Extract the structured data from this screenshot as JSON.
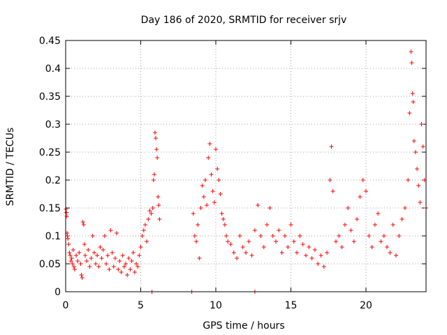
{
  "chart_data": {
    "type": "scatter",
    "title": "Day 186 of 2020, SRMTID for receiver srjv",
    "xlabel": "GPS time / hours",
    "ylabel": "SRMTID / TECUs",
    "xlim": [
      0,
      24
    ],
    "ylim": [
      0,
      0.45
    ],
    "x_ticks": [
      0,
      5,
      10,
      15,
      20
    ],
    "x_tick_labels": [
      "0",
      "5",
      "10",
      "15",
      "20"
    ],
    "y_ticks": [
      0,
      0.05,
      0.1,
      0.15,
      0.2,
      0.25,
      0.3,
      0.35,
      0.4,
      0.45
    ],
    "y_tick_labels": [
      "0",
      "0.05",
      "0.1",
      "0.15",
      "0.2",
      "0.25",
      "0.3",
      "0.35",
      "0.4",
      "0.45"
    ],
    "grid": true,
    "marker": "+",
    "color": "#ff0000",
    "series": [
      {
        "name": "SRMTID",
        "points": [
          [
            0.02,
            0.148
          ],
          [
            0.05,
            0.142
          ],
          [
            0.08,
            0.135
          ],
          [
            0.1,
            0.105
          ],
          [
            0.12,
            0.1
          ],
          [
            0.15,
            0.095
          ],
          [
            0.2,
            0.085
          ],
          [
            0.25,
            0.07
          ],
          [
            0.3,
            0.065
          ],
          [
            0.35,
            0.055
          ],
          [
            0.4,
            0.06
          ],
          [
            0.45,
            0.05
          ],
          [
            0.5,
            0.075
          ],
          [
            0.55,
            0.045
          ],
          [
            0.6,
            0.04
          ],
          [
            0.7,
            0.065
          ],
          [
            0.8,
            0.055
          ],
          [
            0.9,
            0.07
          ],
          [
            1.0,
            0.05
          ],
          [
            1.05,
            0.03
          ],
          [
            1.1,
            0.025
          ],
          [
            1.15,
            0.125
          ],
          [
            1.2,
            0.12
          ],
          [
            1.25,
            0.085
          ],
          [
            1.3,
            0.065
          ],
          [
            1.4,
            0.055
          ],
          [
            1.5,
            0.075
          ],
          [
            1.6,
            0.045
          ],
          [
            1.7,
            0.06
          ],
          [
            1.8,
            0.1
          ],
          [
            1.9,
            0.07
          ],
          [
            2.0,
            0.05
          ],
          [
            2.1,
            0.065
          ],
          [
            2.2,
            0.045
          ],
          [
            2.3,
            0.08
          ],
          [
            2.4,
            0.06
          ],
          [
            2.5,
            0.075
          ],
          [
            2.6,
            0.1
          ],
          [
            2.7,
            0.05
          ],
          [
            2.8,
            0.065
          ],
          [
            2.9,
            0.04
          ],
          [
            3.0,
            0.11
          ],
          [
            3.1,
            0.07
          ],
          [
            3.2,
            0.045
          ],
          [
            3.3,
            0.06
          ],
          [
            3.4,
            0.105
          ],
          [
            3.5,
            0.04
          ],
          [
            3.6,
            0.055
          ],
          [
            3.7,
            0.035
          ],
          [
            3.8,
            0.065
          ],
          [
            3.9,
            0.045
          ],
          [
            4.0,
            0.05
          ],
          [
            4.1,
            0.03
          ],
          [
            4.2,
            0.06
          ],
          [
            4.3,
            0.04
          ],
          [
            4.4,
            0.055
          ],
          [
            4.5,
            0.07
          ],
          [
            4.6,
            0.035
          ],
          [
            4.7,
            0.05
          ],
          [
            4.8,
            0.045
          ],
          [
            4.9,
            0.065
          ],
          [
            5.0,
            0.08
          ],
          [
            5.1,
            0.1
          ],
          [
            5.2,
            0.11
          ],
          [
            5.3,
            0.12
          ],
          [
            5.4,
            0.09
          ],
          [
            5.5,
            0.13
          ],
          [
            5.6,
            0.145
          ],
          [
            5.7,
            0.14
          ],
          [
            5.8,
            0.15
          ],
          [
            5.85,
            0.2
          ],
          [
            5.9,
            0.21
          ],
          [
            5.95,
            0.285
          ],
          [
            6.0,
            0.275
          ],
          [
            6.05,
            0.255
          ],
          [
            6.1,
            0.24
          ],
          [
            6.15,
            0.17
          ],
          [
            6.2,
            0.155
          ],
          [
            6.25,
            0.13
          ],
          [
            8.5,
            0.14
          ],
          [
            8.6,
            0.1
          ],
          [
            8.7,
            0.09
          ],
          [
            8.8,
            0.12
          ],
          [
            8.9,
            0.06
          ],
          [
            9.0,
            0.15
          ],
          [
            9.1,
            0.19
          ],
          [
            9.2,
            0.17
          ],
          [
            9.3,
            0.2
          ],
          [
            9.4,
            0.155
          ],
          [
            9.5,
            0.24
          ],
          [
            9.6,
            0.265
          ],
          [
            9.7,
            0.21
          ],
          [
            9.8,
            0.18
          ],
          [
            9.9,
            0.16
          ],
          [
            10.0,
            0.255
          ],
          [
            10.1,
            0.22
          ],
          [
            10.2,
            0.2
          ],
          [
            10.3,
            0.175
          ],
          [
            10.4,
            0.14
          ],
          [
            10.5,
            0.13
          ],
          [
            10.6,
            0.12
          ],
          [
            10.7,
            0.1
          ],
          [
            10.8,
            0.09
          ],
          [
            11.0,
            0.085
          ],
          [
            11.2,
            0.07
          ],
          [
            11.4,
            0.06
          ],
          [
            11.6,
            0.1
          ],
          [
            11.8,
            0.08
          ],
          [
            12.0,
            0.07
          ],
          [
            12.2,
            0.09
          ],
          [
            12.4,
            0.065
          ],
          [
            12.6,
            0.11
          ],
          [
            12.8,
            0.155
          ],
          [
            13.0,
            0.1
          ],
          [
            13.2,
            0.08
          ],
          [
            13.4,
            0.12
          ],
          [
            13.6,
            0.15
          ],
          [
            13.8,
            0.1
          ],
          [
            14.0,
            0.09
          ],
          [
            14.2,
            0.11
          ],
          [
            14.4,
            0.07
          ],
          [
            14.6,
            0.1
          ],
          [
            14.8,
            0.08
          ],
          [
            15.0,
            0.12
          ],
          [
            15.2,
            0.09
          ],
          [
            15.4,
            0.07
          ],
          [
            15.6,
            0.1
          ],
          [
            15.8,
            0.085
          ],
          [
            16.0,
            0.065
          ],
          [
            16.2,
            0.08
          ],
          [
            16.4,
            0.06
          ],
          [
            16.6,
            0.075
          ],
          [
            16.8,
            0.05
          ],
          [
            17.0,
            0.065
          ],
          [
            17.2,
            0.045
          ],
          [
            17.4,
            0.07
          ],
          [
            17.6,
            0.2
          ],
          [
            17.7,
            0.26
          ],
          [
            17.8,
            0.18
          ],
          [
            18.0,
            0.09
          ],
          [
            18.2,
            0.1
          ],
          [
            18.4,
            0.08
          ],
          [
            18.6,
            0.12
          ],
          [
            18.8,
            0.15
          ],
          [
            19.0,
            0.11
          ],
          [
            19.2,
            0.09
          ],
          [
            19.4,
            0.13
          ],
          [
            19.6,
            0.17
          ],
          [
            19.8,
            0.2
          ],
          [
            20.0,
            0.18
          ],
          [
            20.2,
            0.1
          ],
          [
            20.4,
            0.08
          ],
          [
            20.6,
            0.12
          ],
          [
            20.8,
            0.14
          ],
          [
            21.0,
            0.09
          ],
          [
            21.2,
            0.1
          ],
          [
            21.4,
            0.08
          ],
          [
            21.6,
            0.07
          ],
          [
            21.8,
            0.12
          ],
          [
            22.0,
            0.065
          ],
          [
            22.2,
            0.1
          ],
          [
            22.4,
            0.13
          ],
          [
            22.6,
            0.15
          ],
          [
            22.8,
            0.2
          ],
          [
            22.9,
            0.32
          ],
          [
            23.0,
            0.43
          ],
          [
            23.05,
            0.41
          ],
          [
            23.1,
            0.355
          ],
          [
            23.15,
            0.34
          ],
          [
            23.2,
            0.27
          ],
          [
            23.3,
            0.25
          ],
          [
            23.4,
            0.22
          ],
          [
            23.5,
            0.19
          ],
          [
            23.6,
            0.16
          ],
          [
            23.7,
            0.3
          ],
          [
            23.8,
            0.26
          ],
          [
            23.9,
            0.2
          ],
          [
            24.0,
            0.15
          ],
          [
            5.75,
            0.0
          ],
          [
            8.4,
            0.0
          ],
          [
            12.6,
            0.0
          ]
        ]
      }
    ]
  }
}
